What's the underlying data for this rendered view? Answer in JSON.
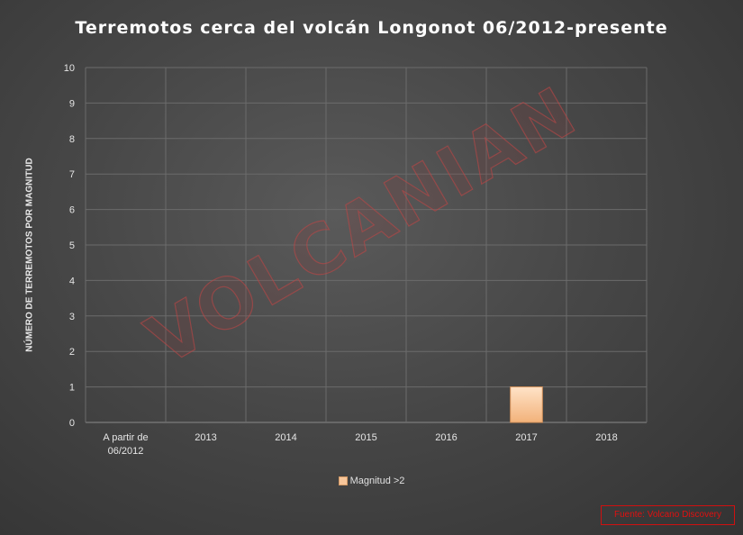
{
  "chart_data": {
    "type": "bar",
    "title": "Terremotos cerca del volcán Longonot 06/2012-presente",
    "ylabel": "NÚMERO DE TERREMOTOS POR MAGNITUD",
    "xlabel": "",
    "categories": [
      "A partir de 06/2012",
      "2013",
      "2014",
      "2015",
      "2016",
      "2017",
      "2018"
    ],
    "series": [
      {
        "name": "Magnitud >2",
        "values": [
          0,
          0,
          0,
          0,
          0,
          1,
          0
        ],
        "color": "#f7c69a"
      }
    ],
    "ylim": [
      0,
      10
    ],
    "yticks": [
      0,
      1,
      2,
      3,
      4,
      5,
      6,
      7,
      8,
      9,
      10
    ],
    "grid": true,
    "legend": "bottom"
  },
  "watermark": "VOLCANIAN",
  "source": "Fuente: Volcano Discovery"
}
